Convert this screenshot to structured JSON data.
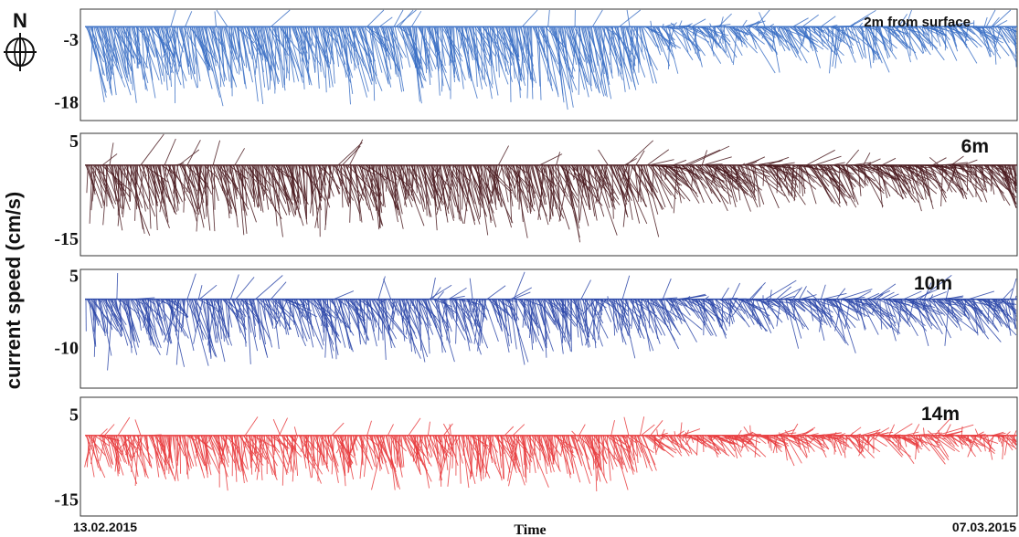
{
  "chart_data": {
    "type": "stick-plot",
    "ylabel": "current speed (cm/s)",
    "xlabel": "Time",
    "x_start_label": "13.02.2015",
    "x_end_label": "07.03.2015",
    "compass_label": "N",
    "panels": [
      {
        "label": "2m from surface",
        "color": "#3a6fc4",
        "y_ticks": [
          -3,
          -18
        ],
        "ylim": [
          4.2,
          -22.5
        ],
        "east_first": 2.5,
        "east_second": 3.0,
        "north_first": -11.0,
        "north_second": -4.0,
        "spread_first": 6.0,
        "spread_second": 5.0
      },
      {
        "label": "6m",
        "color": "#4a1a1e",
        "y_ticks": [
          5,
          -15
        ],
        "ylim": [
          6.5,
          -18.5
        ],
        "east_first": 2.0,
        "east_second": 3.5,
        "north_first": -8.0,
        "north_second": -4.0,
        "spread_first": 5.0,
        "spread_second": 4.5
      },
      {
        "label": "10m",
        "color": "#2b47a8",
        "y_ticks": [
          5,
          -10
        ],
        "ylim": [
          6.2,
          -18.5
        ],
        "east_first": 2.0,
        "east_second": 3.2,
        "north_first": -6.5,
        "north_second": -3.5,
        "spread_first": 5.5,
        "spread_second": 5.0
      },
      {
        "label": "14m",
        "color": "#e83a3c",
        "y_ticks": [
          5,
          -15
        ],
        "ylim": [
          9.0,
          -19.0
        ],
        "east_first": 1.5,
        "east_second": 2.5,
        "north_first": -6.5,
        "north_second": -2.0,
        "spread_first": 4.5,
        "spread_second": 3.5
      }
    ]
  }
}
